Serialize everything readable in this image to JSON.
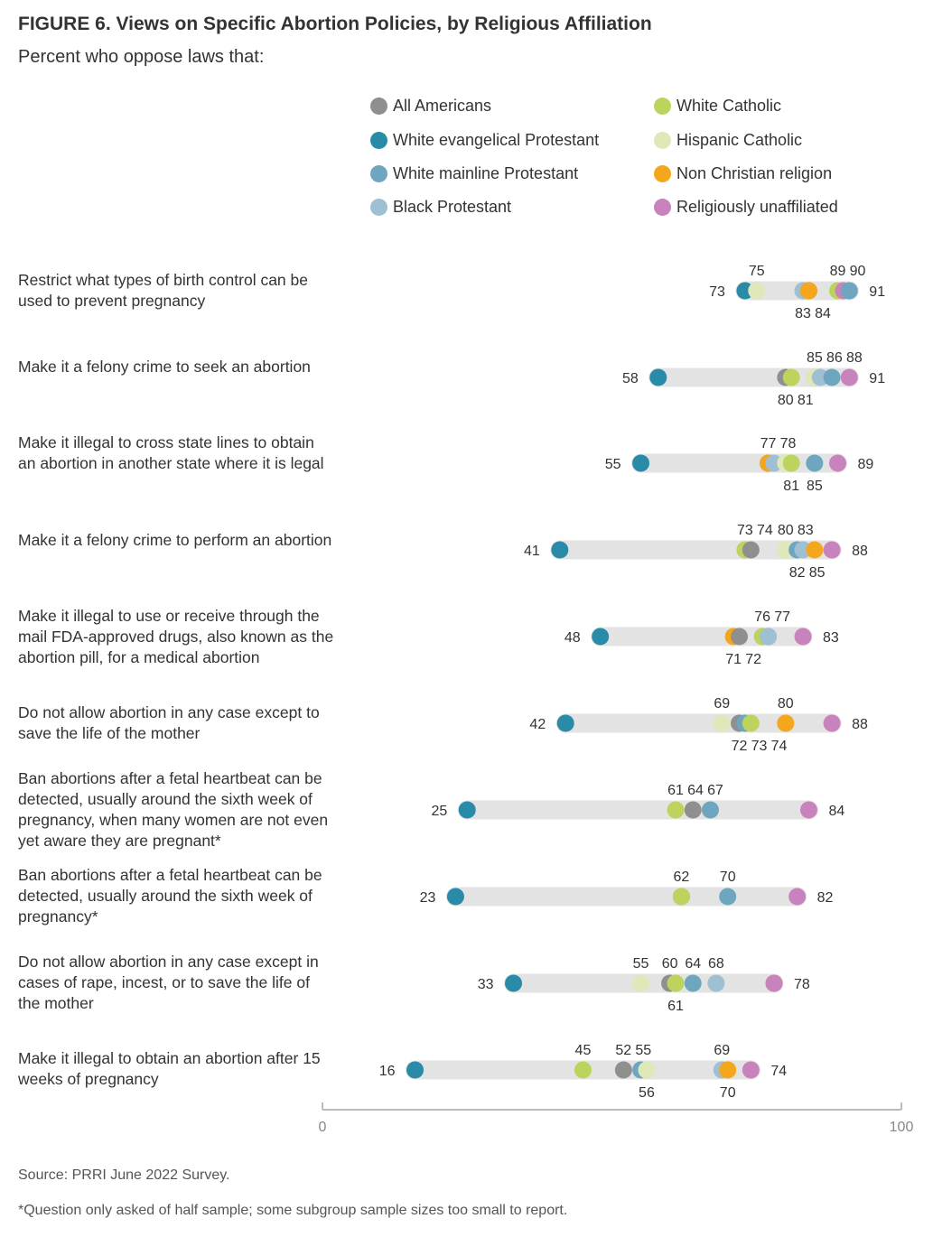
{
  "figure": {
    "title": "FIGURE 6.  Views on Specific Abortion Policies, by Religious Affiliation",
    "subtitle": "Percent who oppose laws that:",
    "source": "Source: PRRI June 2022 Survey.",
    "footnote": "*Question only asked of half sample; some subgroup sample sizes too small to report."
  },
  "chart_data": {
    "type": "dot",
    "xlim": [
      0,
      100
    ],
    "x_tick_labels": [
      "0",
      "100"
    ],
    "legend_placement": "top",
    "series": [
      {
        "key": "all",
        "name": "All Americans",
        "color": "#8f8f8f"
      },
      {
        "key": "white_cath",
        "name": "White Catholic",
        "color": "#bcd45e"
      },
      {
        "key": "white_evang",
        "name": "White evangelical Protestant",
        "color": "#2a8ba8"
      },
      {
        "key": "hisp_cath",
        "name": "Hispanic Catholic",
        "color": "#dfe8b8"
      },
      {
        "key": "white_main",
        "name": "White mainline Protestant",
        "color": "#6fa6bf"
      },
      {
        "key": "non_christ",
        "name": "Non Christian religion",
        "color": "#f4a71c"
      },
      {
        "key": "black_prot",
        "name": "Black Protestant",
        "color": "#9ec0d2"
      },
      {
        "key": "unaffil",
        "name": "Religiously unaffiliated",
        "color": "#c983bc"
      }
    ],
    "rows": [
      {
        "label": "Restrict what types of birth control can be used to prevent pregnancy",
        "values": {
          "white_evang": 73,
          "hisp_cath": 75,
          "black_prot": 83,
          "all": 84,
          "non_christ": 84,
          "white_cath": 89,
          "unaffil": 90,
          "white_main": 91
        },
        "labels_above": [
          "75",
          "89",
          "90"
        ],
        "labels_below": [
          "83",
          "84"
        ],
        "min_label": "73",
        "max_label": "91"
      },
      {
        "label": "Make it a felony crime to seek an abortion",
        "values": {
          "white_evang": 58,
          "all": 80,
          "white_cath": 81,
          "non_christ": 85,
          "hisp_cath": 85,
          "black_prot": 86,
          "white_main": 88,
          "unaffil": 91
        },
        "labels_above": [
          "85",
          "86",
          "88"
        ],
        "labels_below": [
          "80",
          "81"
        ],
        "min_label": "58",
        "max_label": "91"
      },
      {
        "label": "Make it illegal to cross state lines to obtain an abortion in another state where it is legal",
        "values": {
          "white_evang": 55,
          "all": 77,
          "non_christ": 77,
          "black_prot": 78,
          "hisp_cath": 80,
          "white_cath": 81,
          "white_main": 85,
          "unaffil": 89
        },
        "labels_above": [
          "77",
          "78"
        ],
        "labels_below": [
          "81",
          "85"
        ],
        "min_label": "55",
        "max_label": "89"
      },
      {
        "label": "Make it a felony crime to perform an abortion",
        "values": {
          "white_evang": 41,
          "white_cath": 73,
          "all": 74,
          "hisp_cath": 80,
          "white_main": 82,
          "black_prot": 83,
          "non_christ": 85,
          "unaffil": 88
        },
        "labels_above": [
          "73",
          "74",
          "80",
          "83"
        ],
        "labels_below": [
          "82",
          "85"
        ],
        "min_label": "41",
        "max_label": "88"
      },
      {
        "label": "Make it illegal to use or receive through the mail FDA-approved drugs, also known as the abortion pill, for a medical abortion",
        "values": {
          "white_evang": 48,
          "non_christ": 71,
          "all": 72,
          "white_cath": 76,
          "white_main": 77,
          "black_prot": 77,
          "unaffil": 83
        },
        "labels_above": [
          "76",
          "77"
        ],
        "labels_below": [
          "71",
          "72"
        ],
        "min_label": "48",
        "max_label": "83"
      },
      {
        "label": "Do not allow abortion in any case except to save the life of the mother",
        "values": {
          "white_evang": 42,
          "hisp_cath": 69,
          "all": 72,
          "white_main": 73,
          "white_cath": 74,
          "black_prot": 80,
          "non_christ": 80,
          "unaffil": 88
        },
        "labels_above": [
          "69",
          "80"
        ],
        "labels_below": [
          "72",
          "73",
          "74"
        ],
        "min_label": "42",
        "max_label": "88"
      },
      {
        "label": "Ban abortions after a fetal heartbeat can be detected, usually around the sixth week of pregnancy, when many women are not even yet aware they are pregnant*",
        "values": {
          "white_evang": 25,
          "white_cath": 61,
          "all": 64,
          "white_main": 67,
          "unaffil": 84
        },
        "labels_above": [
          "61",
          "64",
          "67"
        ],
        "labels_below": [],
        "min_label": "25",
        "max_label": "84"
      },
      {
        "label": "Ban abortions after a fetal heartbeat can be detected, usually around the sixth week of pregnancy*",
        "values": {
          "white_evang": 23,
          "all": 62,
          "white_cath": 62,
          "white_main": 70,
          "unaffil": 82
        },
        "labels_above": [
          "62",
          "70"
        ],
        "labels_below": [],
        "min_label": "23",
        "max_label": "82"
      },
      {
        "label": "Do not allow abortion in any case except in cases of rape, incest, or to save the life of the mother",
        "values": {
          "white_evang": 33,
          "hisp_cath": 55,
          "all": 60,
          "white_cath": 61,
          "white_main": 64,
          "black_prot": 68,
          "non_christ": 78,
          "unaffil": 78
        },
        "labels_above": [
          "55",
          "60",
          "64",
          "68"
        ],
        "labels_below": [
          "61"
        ],
        "min_label": "33",
        "max_label": "78"
      },
      {
        "label": "Make it illegal to obtain an abortion after 15 weeks of pregnancy",
        "values": {
          "white_evang": 16,
          "white_cath": 45,
          "all": 52,
          "white_main": 55,
          "hisp_cath": 56,
          "black_prot": 69,
          "non_christ": 70,
          "unaffil": 74
        },
        "labels_above": [
          "45",
          "52",
          "55",
          "69"
        ],
        "labels_below": [
          "56",
          "70"
        ],
        "min_label": "16",
        "max_label": "74"
      }
    ]
  }
}
